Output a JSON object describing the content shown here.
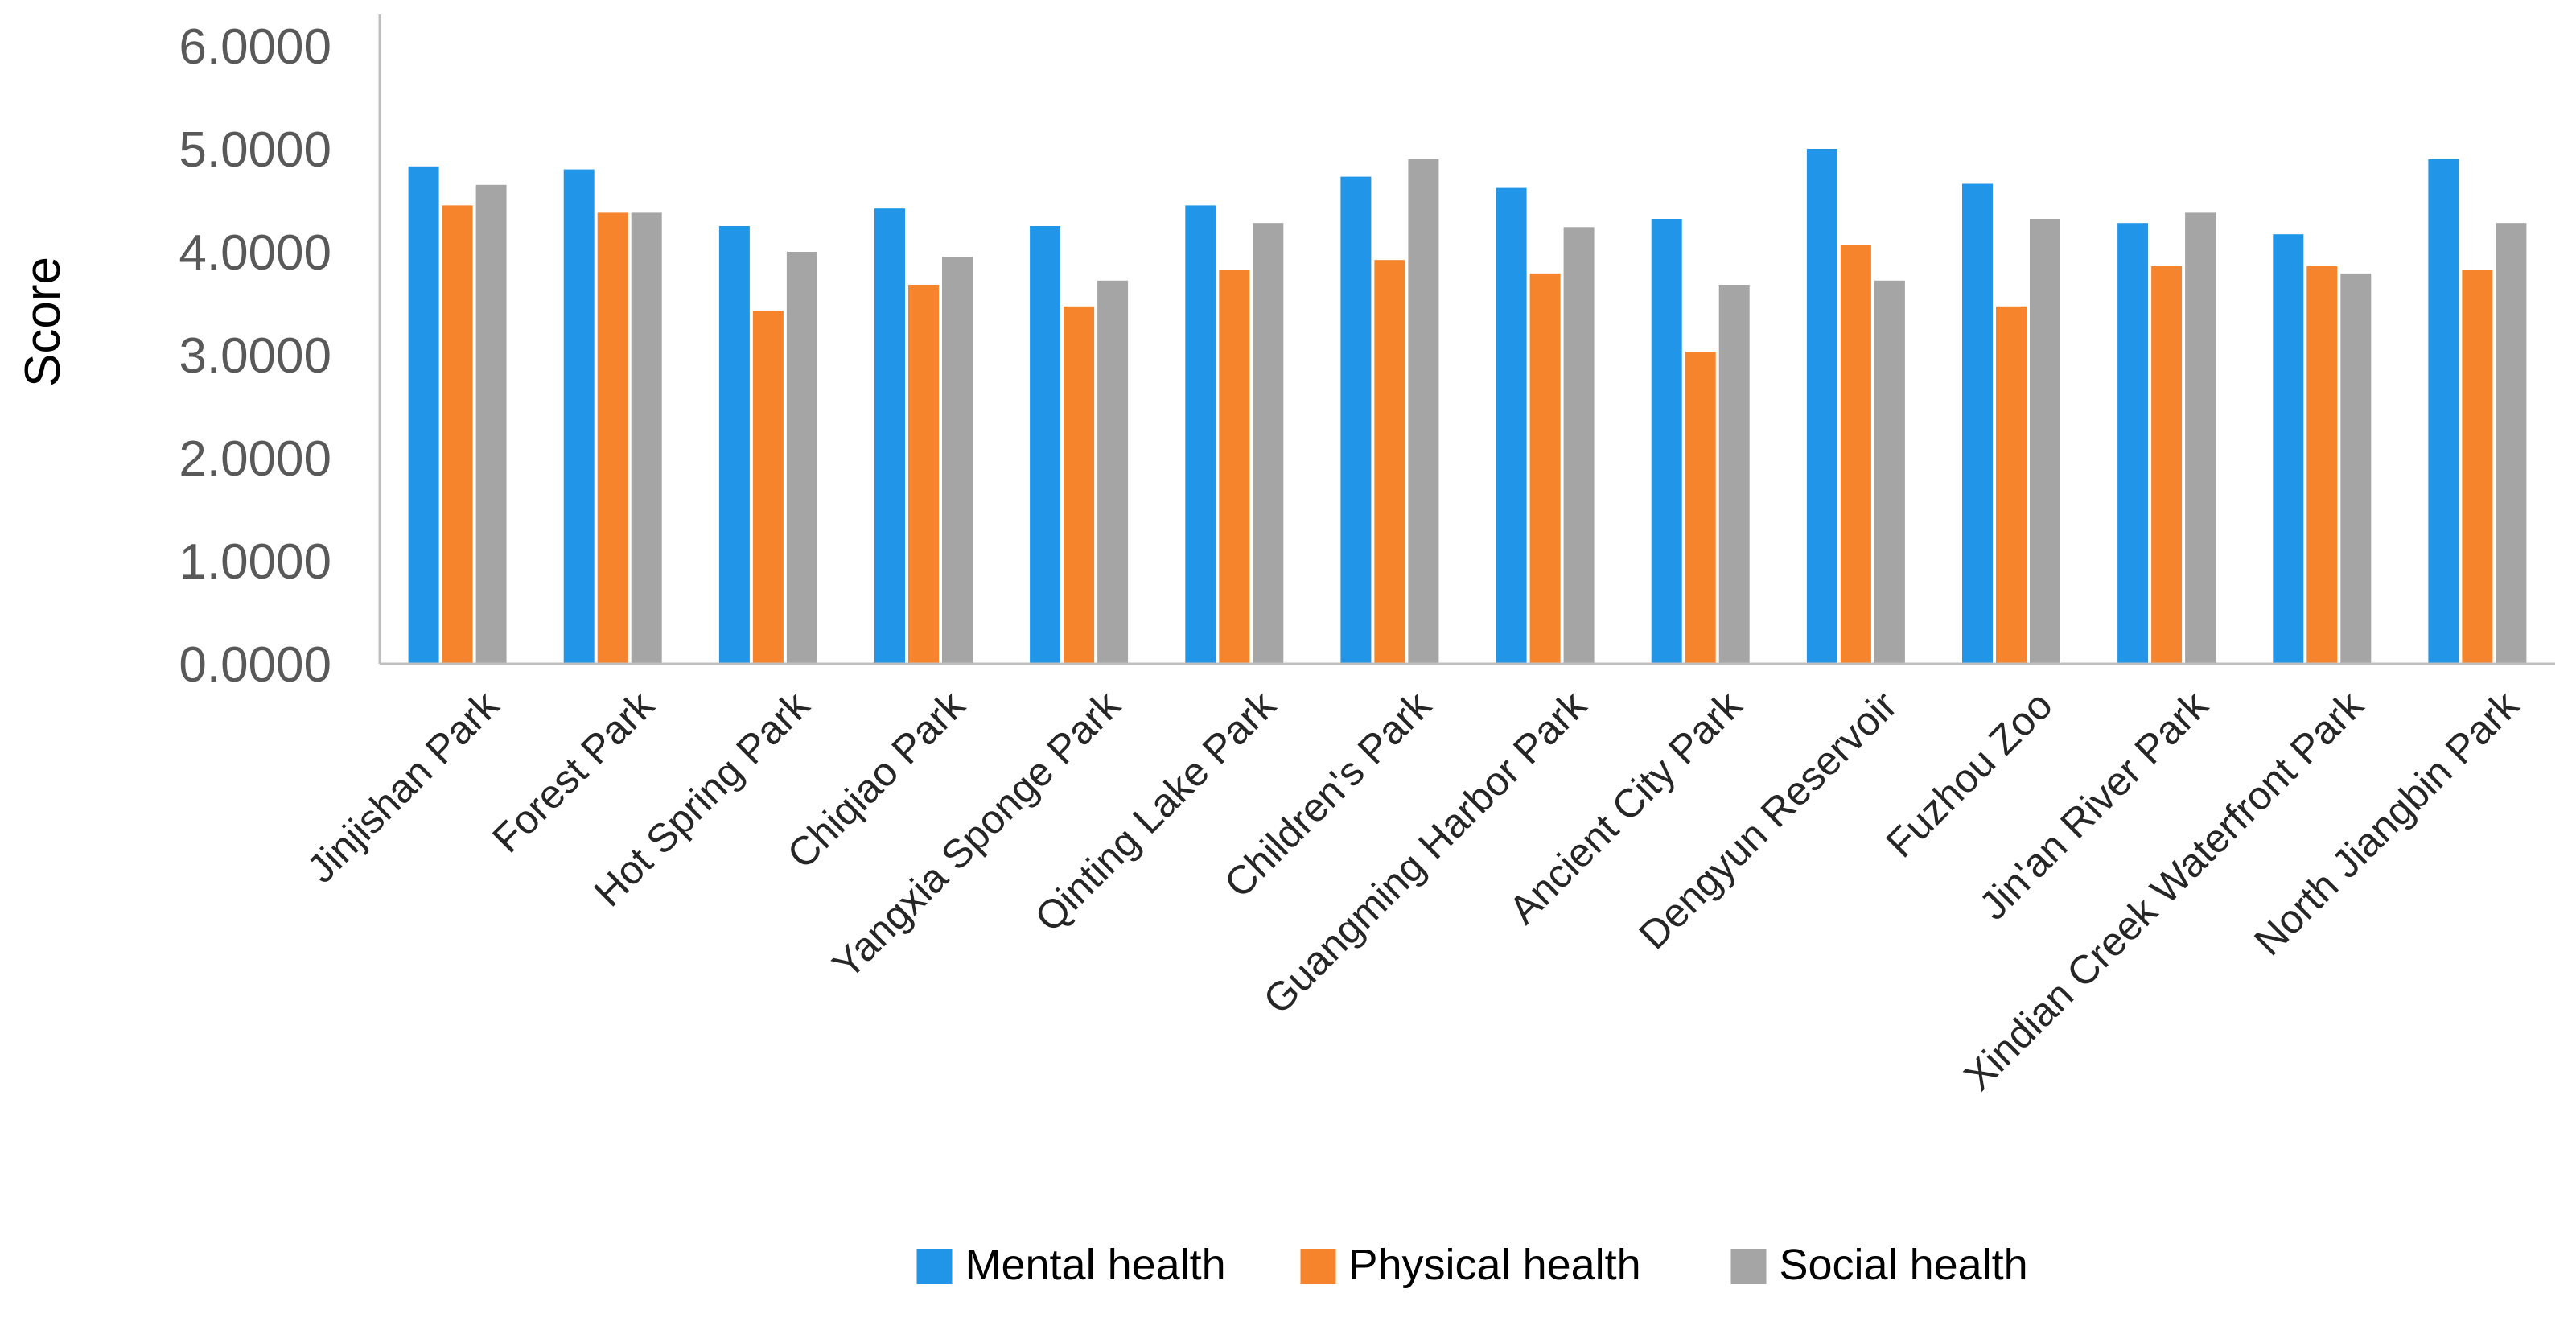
{
  "chart_data": {
    "type": "bar",
    "title": "",
    "xlabel": "",
    "ylabel": "Score",
    "ylim": [
      0,
      6
    ],
    "yticks": [
      "0.0000",
      "1.0000",
      "2.0000",
      "3.0000",
      "4.0000",
      "5.0000",
      "6.0000"
    ],
    "grid": false,
    "legend_position": "bottom",
    "categories": [
      "Jinjishan Park",
      "Forest Park",
      "Hot Spring Park",
      "Chiqiao Park",
      "Yangxia Sponge Park",
      "Qinting Lake Park",
      "Children's Park",
      "Guangming Harbor Park",
      "Ancient City Park",
      "Dengyun Reservoir",
      "Fuzhou Zoo",
      "Jin'an River Park",
      "Xindian Creek Waterfront Park",
      "North Jiangbin Park"
    ],
    "series": [
      {
        "name": "Mental health",
        "color": "#2196E8",
        "values": [
          4.83,
          4.8,
          4.25,
          4.42,
          4.25,
          4.45,
          4.73,
          4.62,
          4.32,
          5.0,
          4.66,
          4.28,
          4.17,
          4.9
        ]
      },
      {
        "name": "Physical health",
        "color": "#F5842C",
        "values": [
          4.45,
          4.38,
          3.43,
          3.68,
          3.47,
          3.82,
          3.92,
          3.79,
          3.03,
          4.07,
          3.47,
          3.86,
          3.86,
          3.82
        ]
      },
      {
        "name": "Social health",
        "color": "#A5A5A5",
        "values": [
          4.65,
          4.38,
          4.0,
          3.95,
          3.72,
          4.28,
          4.9,
          4.24,
          3.68,
          3.72,
          4.32,
          4.38,
          3.79,
          4.28
        ]
      }
    ]
  }
}
